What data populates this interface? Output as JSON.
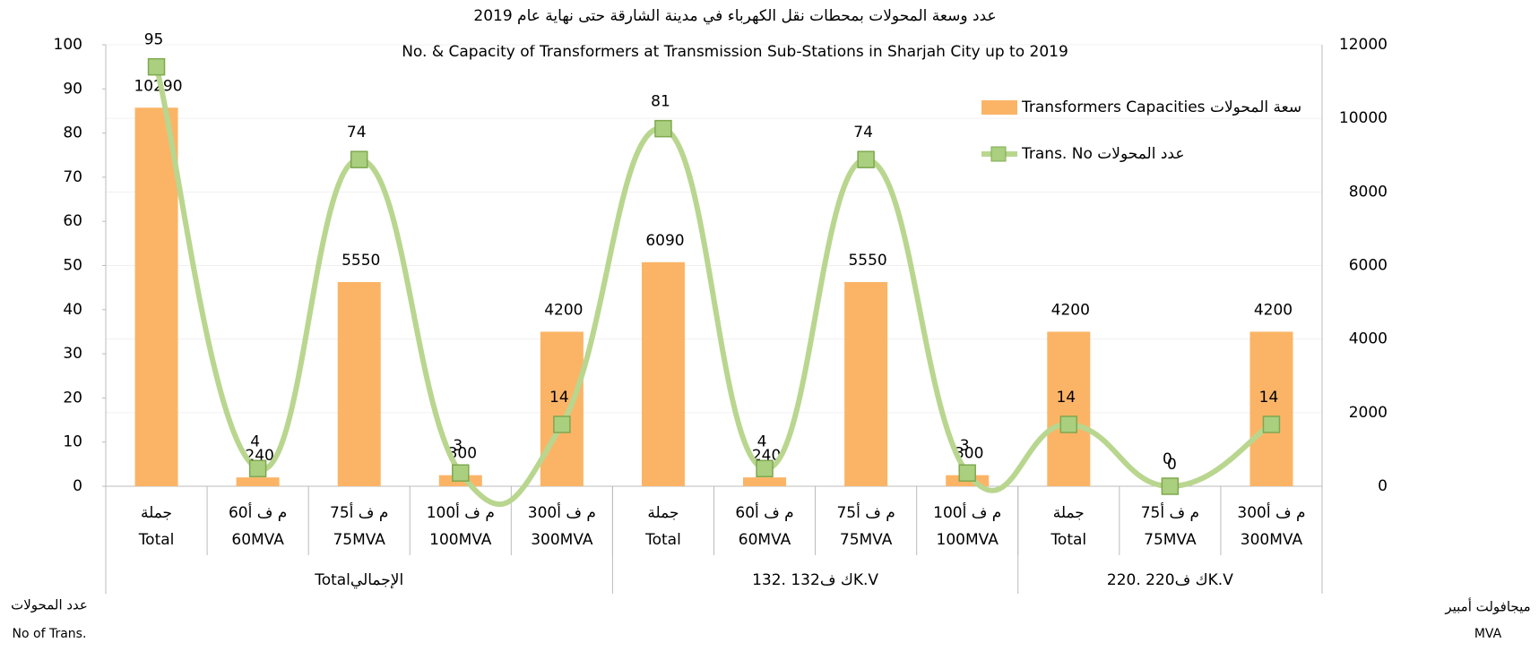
{
  "chart_data": {
    "type": "bar_line",
    "title": "عدد وسعة المحولات بمحطات نقل الكهرباء في مدينة الشارقة حتى نهاية عام 2019",
    "subtitle": "No. & Capacity of Transformers at Transmission Sub-Stations in Sharjah City up to 2019",
    "y_label": [
      "عدد المحولات",
      "No of Trans."
    ],
    "y2_label": [
      "ميجافولت أمبير",
      "MVA"
    ],
    "groups": [
      {
        "label": "Totalالإجمالي",
        "categories": [
          [
            "جملة",
            "Total"
          ],
          [
            "60م ف أ",
            "60MVA"
          ],
          [
            "75م ف أ",
            "75MVA"
          ],
          [
            "100م ف أ",
            "100MVA"
          ],
          [
            "300م ف أ",
            "300MVA"
          ]
        ]
      },
      {
        "label": "ك ف132 .132K.V",
        "categories": [
          [
            "جملة",
            "Total"
          ],
          [
            "60م ف أ",
            "60MVA"
          ],
          [
            "75م ف أ",
            "75MVA"
          ],
          [
            "100م ف أ",
            "100MVA"
          ]
        ]
      },
      {
        "label": "ك ف220 .220K.V",
        "categories": [
          [
            "جملة",
            "Total"
          ],
          [
            "75م ف أ",
            "75MVA"
          ],
          [
            "300م ف أ",
            "300MVA"
          ]
        ]
      }
    ],
    "series": [
      {
        "name": "Transformers Capacities سعة المحولات",
        "type": "bar",
        "axis": "y2",
        "color": "#fbb466",
        "values": [
          10290,
          240,
          5550,
          300,
          4200,
          6090,
          240,
          5550,
          300,
          4200,
          0,
          4200
        ]
      },
      {
        "name": "Trans. No عدد المحولات",
        "type": "line",
        "axis": "y",
        "color": "#b9d68f",
        "values": [
          95,
          4,
          74,
          3,
          14,
          81,
          4,
          74,
          3,
          14,
          0,
          14
        ]
      }
    ],
    "ylim": [
      0,
      100
    ],
    "yticks": [
      0,
      10,
      20,
      30,
      40,
      50,
      60,
      70,
      80,
      90,
      100
    ],
    "y2lim": [
      0,
      12000
    ],
    "y2ticks": [
      0,
      2000,
      4000,
      6000,
      8000,
      10000,
      12000
    ],
    "grid": true
  }
}
